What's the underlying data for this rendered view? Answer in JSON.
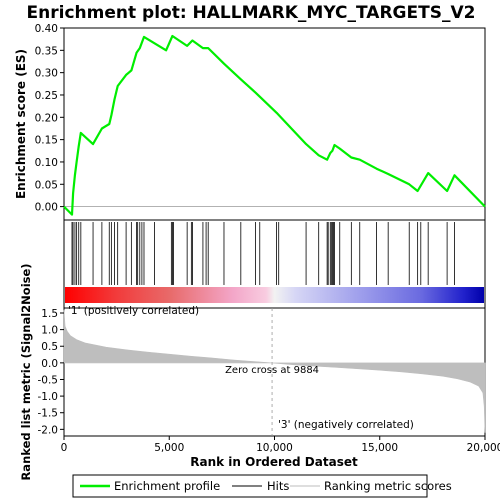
{
  "chart_data": {
    "type": "line",
    "title": "Enrichment plot: HALLMARK_MYC_TARGETS_V2",
    "colors": {
      "enrichment": "#00ee00",
      "hits": "#000000",
      "metric": "#bebebe",
      "zero_line": "#999999",
      "pos_label": "#cc0000",
      "neg_label": "#0000cc"
    },
    "top_panel": {
      "ylabel": "Enrichment score (ES)",
      "ylim": [
        -0.03,
        0.4
      ],
      "yticks": [
        "0.00",
        "0.05",
        "0.10",
        "0.15",
        "0.20",
        "0.25",
        "0.30",
        "0.35",
        "0.40"
      ],
      "ytick_values": [
        0,
        0.05,
        0.1,
        0.15,
        0.2,
        0.25,
        0.3,
        0.35,
        0.4
      ],
      "series": [
        {
          "name": "Enrichment profile",
          "x": [
            0,
            380,
            430,
            520,
            600,
            700,
            800,
            1380,
            1800,
            2150,
            2250,
            2400,
            2550,
            2950,
            3200,
            3450,
            3600,
            3800,
            4850,
            5150,
            5850,
            6100,
            6600,
            6850,
            7600,
            8400,
            9100,
            10100,
            11500,
            12100,
            12500,
            12650,
            12750,
            12850,
            13100,
            13650,
            14050,
            14850,
            15400,
            16400,
            16800,
            17300,
            18200,
            18550,
            20000
          ],
          "values": [
            0.0,
            -0.018,
            0.03,
            0.07,
            0.1,
            0.135,
            0.165,
            0.14,
            0.175,
            0.185,
            0.205,
            0.24,
            0.27,
            0.295,
            0.305,
            0.345,
            0.355,
            0.38,
            0.35,
            0.382,
            0.36,
            0.372,
            0.355,
            0.355,
            0.32,
            0.285,
            0.255,
            0.21,
            0.14,
            0.115,
            0.105,
            0.12,
            0.125,
            0.138,
            0.13,
            0.11,
            0.105,
            0.085,
            0.073,
            0.05,
            0.035,
            0.075,
            0.035,
            0.07,
            0.0
          ]
        }
      ]
    },
    "hits": {
      "name": "Hits",
      "positions": [
        380,
        430,
        520,
        600,
        700,
        800,
        1380,
        1800,
        2150,
        2250,
        2400,
        2550,
        2950,
        3200,
        3450,
        3500,
        3600,
        3700,
        3800,
        4300,
        5100,
        5150,
        5200,
        5850,
        6050,
        6100,
        6600,
        6750,
        6850,
        7600,
        8400,
        9100,
        9300,
        10100,
        10200,
        11500,
        12100,
        12500,
        12550,
        12650,
        12700,
        12750,
        12800,
        12850,
        13100,
        13650,
        14050,
        14850,
        15400,
        16400,
        16800,
        16950,
        17300,
        18200,
        18550
      ]
    },
    "color_bar": {
      "stops": [
        {
          "pos": 0.0,
          "color": "#ff0000"
        },
        {
          "pos": 0.12,
          "color": "#f23a3a"
        },
        {
          "pos": 0.25,
          "color": "#e86a6a"
        },
        {
          "pos": 0.4,
          "color": "#f3a6c8"
        },
        {
          "pos": 0.48,
          "color": "#f8cce0"
        },
        {
          "pos": 0.5,
          "color": "#f2f2f2"
        },
        {
          "pos": 0.55,
          "color": "#d6d6f5"
        },
        {
          "pos": 0.7,
          "color": "#a0a0ec"
        },
        {
          "pos": 0.85,
          "color": "#6a6ae0"
        },
        {
          "pos": 0.95,
          "color": "#2222cc"
        },
        {
          "pos": 1.0,
          "color": "#0000aa"
        }
      ]
    },
    "bottom_panel": {
      "ylabel": "Ranked list metric (Signal2Noise)",
      "xlabel": "Rank in Ordered Dataset",
      "ylim": [
        -2.2,
        1.65
      ],
      "yticks": [
        "-2.0",
        "-1.5",
        "-1.0",
        "-0.5",
        "0.0",
        "0.5",
        "1.0",
        "1.5"
      ],
      "ytick_values": [
        -2,
        -1.5,
        -1,
        -0.5,
        0,
        0.5,
        1,
        1.5
      ],
      "series": {
        "name": "Ranking metric scores",
        "x": [
          0,
          50,
          150,
          300,
          600,
          1000,
          2000,
          3000,
          4000,
          5000,
          6000,
          7000,
          8000,
          9000,
          9884,
          11000,
          12000,
          13000,
          14000,
          15000,
          16000,
          17000,
          18000,
          18700,
          19300,
          19700,
          19900,
          19960,
          20000
        ],
        "values": [
          1.6,
          1.1,
          0.95,
          0.82,
          0.7,
          0.6,
          0.47,
          0.39,
          0.32,
          0.26,
          0.2,
          0.15,
          0.09,
          0.04,
          0.0,
          -0.06,
          -0.1,
          -0.14,
          -0.18,
          -0.22,
          -0.27,
          -0.33,
          -0.4,
          -0.48,
          -0.58,
          -0.7,
          -0.9,
          -1.3,
          -2.1
        ]
      },
      "zero_cross_label": "Zero cross at 9884",
      "zero_cross": 9884,
      "pos_label": "'1' (positively correlated)",
      "neg_label": "'3' (negatively correlated)"
    },
    "x_axis": {
      "xlim": [
        0,
        20000
      ],
      "xticks": [
        "0",
        "5,000",
        "10,000",
        "15,000",
        "20,000"
      ],
      "xtick_values": [
        0,
        5000,
        10000,
        15000,
        20000
      ]
    },
    "legend": {
      "placement": "bottom",
      "items": [
        "Enrichment profile",
        "Hits",
        "Ranking metric scores"
      ]
    }
  }
}
